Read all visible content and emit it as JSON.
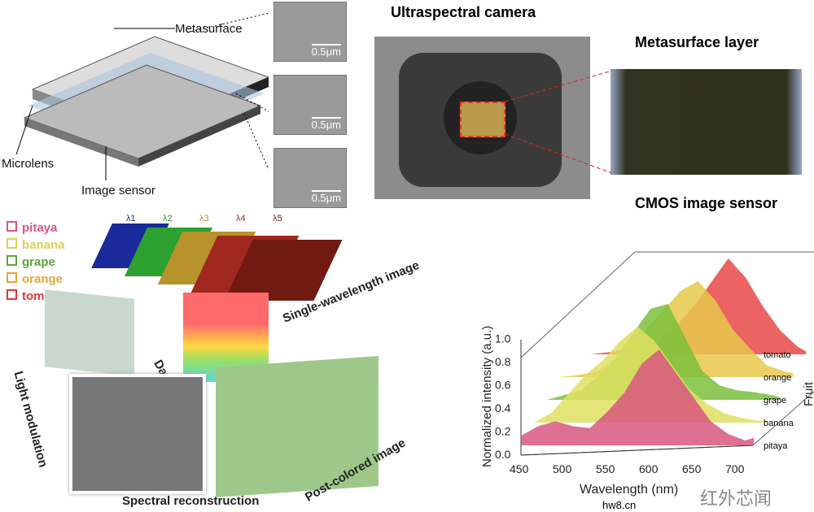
{
  "device": {
    "metasurface": "Metasurface",
    "microlens": "Microlens",
    "image_sensor": "Image sensor"
  },
  "sem": {
    "scale": "0.5μm"
  },
  "camera": {
    "title": "Ultraspectral camera",
    "metasurface_layer": "Metasurface layer",
    "cmos": "CMOS image sensor"
  },
  "legend": [
    {
      "label": "pitaya",
      "color": "#d8577f"
    },
    {
      "label": "banana",
      "color": "#d9d25a"
    },
    {
      "label": "grape",
      "color": "#5aa63a"
    },
    {
      "label": "orange",
      "color": "#e9a33a"
    },
    {
      "label": "tomato",
      "color": "#d83a3a"
    }
  ],
  "wavelength_labels": [
    "λ1",
    "λ2",
    "λ3",
    "λ4",
    "λ5"
  ],
  "pipeline": {
    "single": "Single-wavelength image",
    "cube": "Data cube",
    "light": "Light modulation",
    "spectral": "Spectral reconstruction",
    "post": "Post-colored image"
  },
  "watermark": "红外芯闻",
  "watermark_url": "hw8.cn",
  "chart_data": {
    "type": "area",
    "xlabel": "Wavelength (nm)",
    "ylabel": "Normalized intensity (a.u.)",
    "zlabel": "Fruit",
    "xlim": [
      450,
      720
    ],
    "ylim": [
      0,
      1.0
    ],
    "xticks": [
      "450",
      "500",
      "550",
      "600",
      "650",
      "700"
    ],
    "yticks": [
      "0.0",
      "0.2",
      "0.4",
      "0.6",
      "0.8",
      "1.0"
    ],
    "x": [
      450,
      470,
      490,
      510,
      530,
      550,
      570,
      590,
      610,
      630,
      650,
      670,
      690,
      710,
      720
    ],
    "series": [
      {
        "name": "pitaya",
        "color": "#d8577f",
        "values": [
          0.1,
          0.2,
          0.25,
          0.2,
          0.18,
          0.35,
          0.55,
          0.85,
          1.0,
          0.75,
          0.5,
          0.25,
          0.12,
          0.05,
          0.08
        ]
      },
      {
        "name": "banana",
        "color": "#dfe060",
        "values": [
          0.0,
          0.1,
          0.3,
          0.5,
          0.65,
          0.85,
          1.0,
          0.85,
          0.6,
          0.35,
          0.2,
          0.1,
          0.05,
          0.02,
          0.02
        ]
      },
      {
        "name": "grape",
        "color": "#7bbf3c",
        "values": [
          0.0,
          0.05,
          0.1,
          0.25,
          0.45,
          0.7,
          0.95,
          1.0,
          0.65,
          0.3,
          0.15,
          0.1,
          0.08,
          0.05,
          0.03
        ]
      },
      {
        "name": "orange",
        "color": "#e6c84a",
        "values": [
          0.0,
          0.02,
          0.05,
          0.15,
          0.3,
          0.5,
          0.7,
          0.9,
          1.0,
          0.8,
          0.5,
          0.3,
          0.12,
          0.06,
          0.04
        ]
      },
      {
        "name": "tomato",
        "color": "#e84848",
        "values": [
          0.0,
          0.0,
          0.02,
          0.05,
          0.08,
          0.15,
          0.3,
          0.5,
          0.75,
          1.0,
          0.8,
          0.5,
          0.25,
          0.08,
          0.03
        ]
      }
    ]
  }
}
